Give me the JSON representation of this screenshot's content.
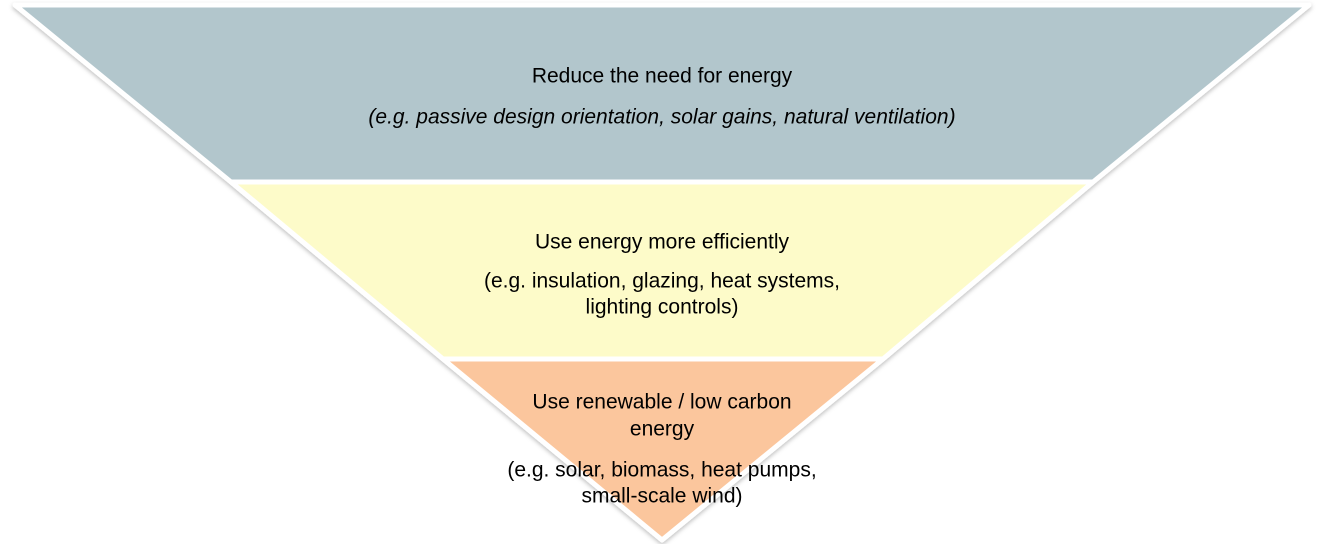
{
  "tiers": [
    {
      "title": [
        "Reduce the need for energy"
      ],
      "description": [
        "(e.g. passive design orientation, solar gains, natural ventilation)"
      ]
    },
    {
      "title": [
        "Use energy more efficiently"
      ],
      "description": [
        "(e.g. insulation, glazing, heat systems,",
        "lighting controls)"
      ]
    },
    {
      "title": [
        "Use renewable / low carbon",
        "energy"
      ],
      "description": [
        "(e.g. solar, biomass, heat pumps,",
        "small-scale wind)"
      ]
    }
  ]
}
